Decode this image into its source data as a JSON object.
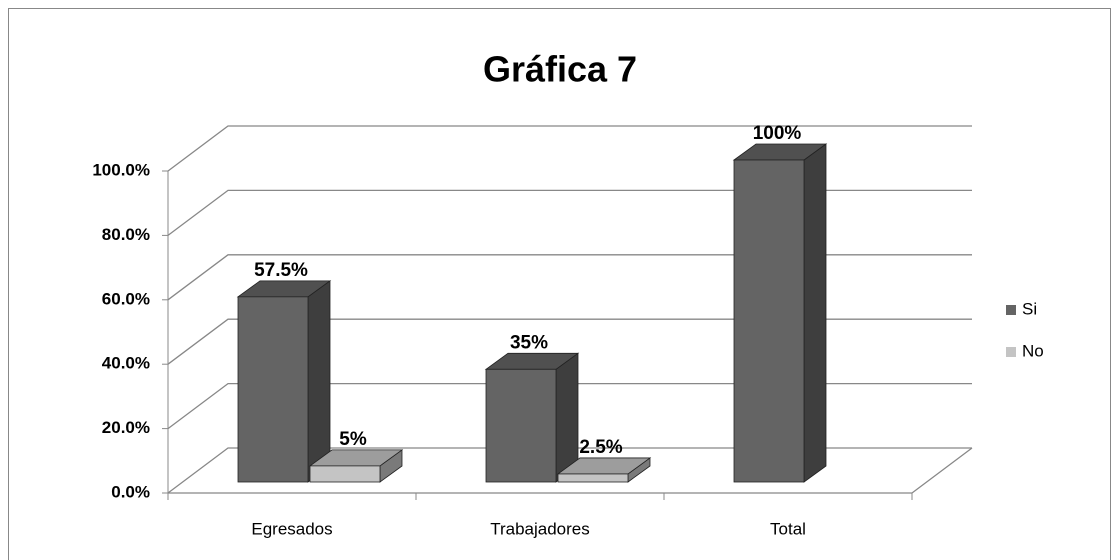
{
  "chart_data": {
    "type": "bar3d",
    "title": "Gráfica 7",
    "categories": [
      "Egresados",
      "Trabajadores",
      "Total"
    ],
    "series": [
      {
        "name": "Si",
        "color": "#646464",
        "values": [
          57.5,
          35,
          100
        ],
        "value_labels": [
          "57.5%",
          "35%",
          "100%"
        ]
      },
      {
        "name": "No",
        "color": "#c4c4c4",
        "values": [
          5,
          2.5,
          null
        ],
        "value_labels": [
          "5%",
          "2.5%",
          null
        ]
      }
    ],
    "ylim": [
      0,
      100
    ],
    "yticks": [
      {
        "value": 0,
        "label": "0.0%"
      },
      {
        "value": 20,
        "label": "20.0%"
      },
      {
        "value": 40,
        "label": "40.0%"
      },
      {
        "value": 60,
        "label": "60.0%"
      },
      {
        "value": 80,
        "label": "80.0%"
      },
      {
        "value": 100,
        "label": "100.0%"
      }
    ],
    "grid": true,
    "legend": "right"
  }
}
